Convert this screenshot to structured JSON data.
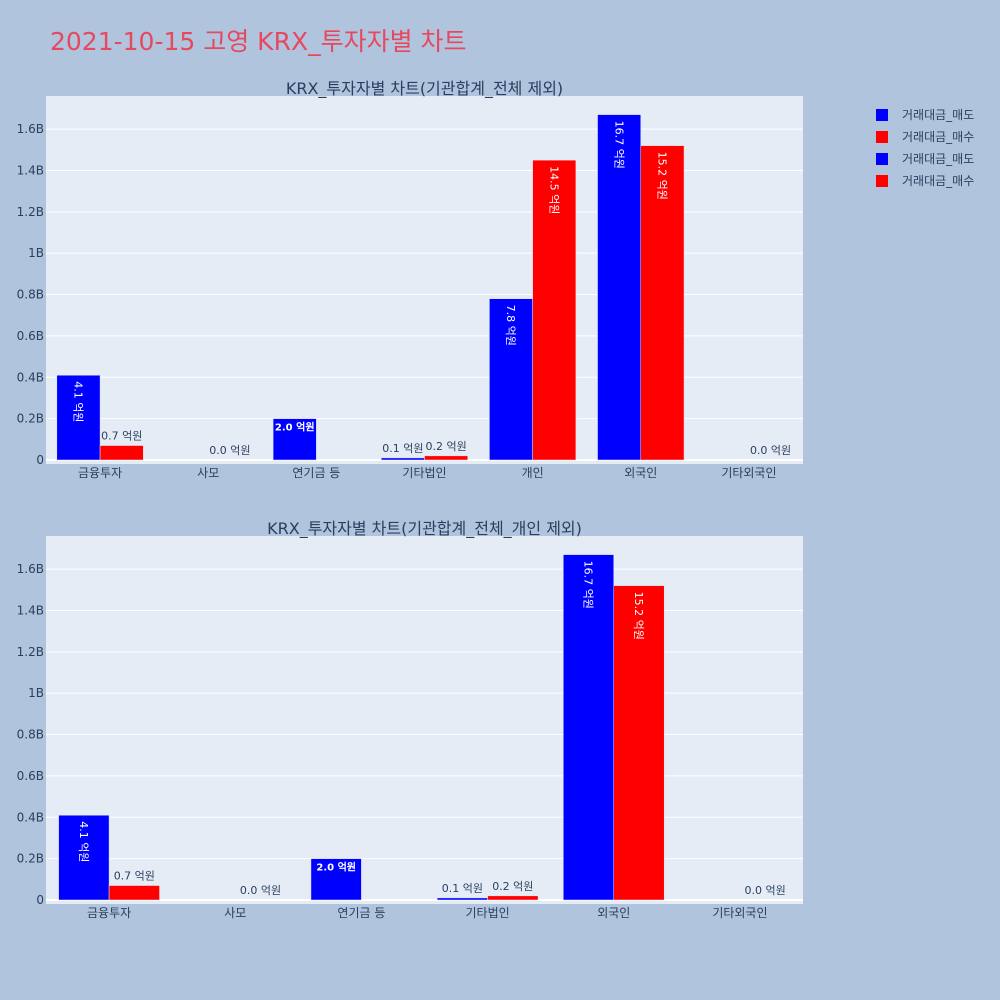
{
  "page": {
    "title": "2021-10-15 고영 KRX_투자자별 차트",
    "background": "#b0c4de",
    "plot_background": "#e5ecf6",
    "title_color": "#e8485e"
  },
  "legend": {
    "items": [
      {
        "label": "거래대금_매도",
        "color": "#0000ff"
      },
      {
        "label": "거래대금_매수",
        "color": "#ff0000"
      },
      {
        "label": "거래대금_매도",
        "color": "#0000ff"
      },
      {
        "label": "거래대금_매수",
        "color": "#ff0000"
      }
    ]
  },
  "chart_data": [
    {
      "type": "bar",
      "title": "KRX_투자자별 차트(기관합계_전체 제외)",
      "categories": [
        "금융투자",
        "사모",
        "연기금 등",
        "기타법인",
        "개인",
        "외국인",
        "기타외국인"
      ],
      "series": [
        {
          "name": "거래대금_매도",
          "color": "#0000ff",
          "values": [
            0.41,
            0.0,
            0.2,
            0.01,
            0.78,
            1.67,
            0.0
          ],
          "labels": [
            "4.1 억원",
            "",
            "2.0 억원",
            "0.1 억원",
            "7.8 억원",
            "16.7 억원",
            ""
          ]
        },
        {
          "name": "거래대금_매수",
          "color": "#ff0000",
          "values": [
            0.07,
            0.0,
            0.0,
            0.02,
            1.45,
            1.52,
            0.0
          ],
          "labels": [
            "0.7 억원",
            "0.0 억원",
            "",
            "0.2 억원",
            "14.5 억원",
            "15.2 억원",
            "0.0 억원"
          ]
        }
      ],
      "yticks": [
        "0",
        "0.2B",
        "0.4B",
        "0.6B",
        "0.8B",
        "1B",
        "1.2B",
        "1.4B",
        "1.6B"
      ],
      "ytick_values": [
        0,
        0.2,
        0.4,
        0.6,
        0.8,
        1.0,
        1.2,
        1.4,
        1.6
      ],
      "ylim": [
        0,
        1.76
      ],
      "grid": true,
      "legend_position": "right"
    },
    {
      "type": "bar",
      "title": "KRX_투자자별 차트(기관합계_전체_개인 제외)",
      "categories": [
        "금융투자",
        "사모",
        "연기금 등",
        "기타법인",
        "외국인",
        "기타외국인"
      ],
      "series": [
        {
          "name": "거래대금_매도",
          "color": "#0000ff",
          "values": [
            0.41,
            0.0,
            0.2,
            0.01,
            1.67,
            0.0
          ],
          "labels": [
            "4.1 억원",
            "",
            "2.0 억원",
            "0.1 억원",
            "16.7 억원",
            ""
          ]
        },
        {
          "name": "거래대금_매수",
          "color": "#ff0000",
          "values": [
            0.07,
            0.0,
            0.0,
            0.02,
            1.52,
            0.0
          ],
          "labels": [
            "0.7 억원",
            "0.0 억원",
            "",
            "0.2 억원",
            "15.2 억원",
            "0.0 억원"
          ]
        }
      ],
      "yticks": [
        "0",
        "0.2B",
        "0.4B",
        "0.6B",
        "0.8B",
        "1B",
        "1.2B",
        "1.4B",
        "1.6B"
      ],
      "ytick_values": [
        0,
        0.2,
        0.4,
        0.6,
        0.8,
        1.0,
        1.2,
        1.4,
        1.6
      ],
      "ylim": [
        0,
        1.76
      ],
      "grid": true,
      "legend_position": "right"
    }
  ]
}
